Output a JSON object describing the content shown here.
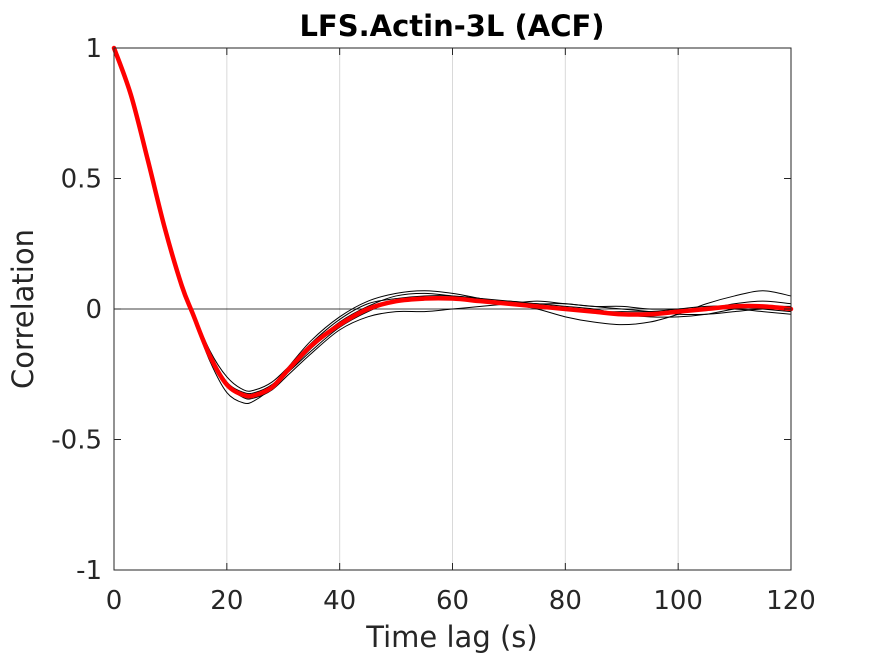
{
  "chart_data": {
    "type": "line",
    "title": "LFS.Actin-3L (ACF)",
    "xlabel": "Time lag (s)",
    "ylabel": "Correlation",
    "xlim": [
      0,
      120
    ],
    "ylim": [
      -1,
      1
    ],
    "xticks": [
      0,
      20,
      40,
      60,
      80,
      100,
      120
    ],
    "yticks": [
      -1,
      -0.5,
      0,
      0.5,
      1
    ],
    "xtick_labels": [
      "0",
      "20",
      "40",
      "60",
      "80",
      "100",
      "120"
    ],
    "ytick_labels": [
      "-1",
      "-0.5",
      "0",
      "0.5",
      "1"
    ],
    "grid": "vertical",
    "zero_line": true,
    "colors": {
      "mean": "#ff0000",
      "traces": "#000000",
      "grid": "#d9d9d9"
    },
    "series": [
      {
        "role": "trace",
        "x": [
          0,
          3,
          6,
          9,
          12,
          14,
          17,
          20,
          23,
          25,
          28,
          31,
          35,
          40,
          45,
          50,
          55,
          60,
          65,
          70,
          75,
          80,
          85,
          90,
          95,
          100,
          105,
          110,
          115,
          120
        ],
        "y": [
          1,
          0.83,
          0.58,
          0.32,
          0.1,
          -0.01,
          -0.17,
          -0.28,
          -0.33,
          -0.33,
          -0.29,
          -0.24,
          -0.16,
          -0.07,
          -0.01,
          0.03,
          0.04,
          0.04,
          0.03,
          0.02,
          0.01,
          0.0,
          -0.01,
          -0.01,
          -0.01,
          0.0,
          0.01,
          0.01,
          0.0,
          -0.01
        ]
      },
      {
        "role": "trace",
        "x": [
          0,
          3,
          6,
          9,
          12,
          14,
          17,
          20,
          23,
          25,
          28,
          31,
          35,
          40,
          45,
          50,
          55,
          60,
          65,
          70,
          75,
          80,
          85,
          90,
          95,
          100,
          105,
          110,
          115,
          120
        ],
        "y": [
          1,
          0.81,
          0.56,
          0.3,
          0.08,
          -0.03,
          -0.2,
          -0.32,
          -0.36,
          -0.35,
          -0.3,
          -0.22,
          -0.12,
          -0.03,
          0.03,
          0.06,
          0.07,
          0.06,
          0.04,
          0.02,
          0.0,
          -0.03,
          -0.05,
          -0.06,
          -0.05,
          -0.02,
          0.02,
          0.05,
          0.07,
          0.05
        ]
      },
      {
        "role": "trace",
        "x": [
          0,
          3,
          6,
          9,
          12,
          14,
          17,
          20,
          23,
          25,
          28,
          31,
          35,
          40,
          45,
          50,
          55,
          60,
          65,
          70,
          75,
          80,
          85,
          90,
          95,
          100,
          105,
          110,
          115,
          120
        ],
        "y": [
          1,
          0.82,
          0.57,
          0.31,
          0.09,
          -0.02,
          -0.18,
          -0.29,
          -0.34,
          -0.34,
          -0.31,
          -0.25,
          -0.17,
          -0.08,
          -0.03,
          -0.01,
          -0.01,
          0.0,
          0.01,
          0.02,
          0.03,
          0.02,
          0.01,
          0.0,
          -0.01,
          -0.02,
          -0.02,
          -0.01,
          0.0,
          0.0
        ]
      },
      {
        "role": "trace",
        "x": [
          0,
          3,
          6,
          9,
          12,
          14,
          17,
          20,
          23,
          25,
          28,
          31,
          35,
          40,
          45,
          50,
          55,
          60,
          65,
          70,
          75,
          80,
          85,
          90,
          95,
          100,
          105,
          110,
          115,
          120
        ],
        "y": [
          1,
          0.83,
          0.59,
          0.33,
          0.1,
          -0.01,
          -0.16,
          -0.26,
          -0.31,
          -0.31,
          -0.28,
          -0.22,
          -0.13,
          -0.04,
          0.02,
          0.04,
          0.05,
          0.05,
          0.04,
          0.03,
          0.02,
          0.02,
          0.01,
          0.01,
          0.0,
          0.0,
          0.0,
          0.0,
          -0.01,
          -0.02
        ]
      },
      {
        "role": "trace",
        "x": [
          0,
          3,
          6,
          9,
          12,
          14,
          17,
          20,
          23,
          25,
          28,
          31,
          35,
          40,
          45,
          50,
          55,
          60,
          65,
          70,
          75,
          80,
          85,
          90,
          95,
          100,
          105,
          110,
          115,
          120
        ],
        "y": [
          1,
          0.82,
          0.58,
          0.32,
          0.09,
          -0.02,
          -0.18,
          -0.29,
          -0.33,
          -0.33,
          -0.3,
          -0.24,
          -0.15,
          -0.06,
          0.0,
          0.03,
          0.04,
          0.04,
          0.03,
          0.03,
          0.02,
          0.01,
          0.0,
          -0.02,
          -0.03,
          -0.03,
          -0.02,
          0.0,
          0.01,
          0.01
        ]
      },
      {
        "role": "trace",
        "x": [
          0,
          3,
          6,
          9,
          12,
          14,
          17,
          20,
          23,
          25,
          28,
          31,
          35,
          40,
          45,
          50,
          55,
          60,
          65,
          70,
          75,
          80,
          85,
          90,
          95,
          100,
          105,
          110,
          115,
          120
        ],
        "y": [
          1,
          0.82,
          0.57,
          0.31,
          0.09,
          -0.02,
          -0.17,
          -0.28,
          -0.32,
          -0.32,
          -0.29,
          -0.23,
          -0.14,
          -0.05,
          0.01,
          0.05,
          0.06,
          0.05,
          0.04,
          0.02,
          0.01,
          0.0,
          -0.01,
          -0.02,
          -0.02,
          -0.01,
          0.0,
          0.02,
          0.03,
          0.02
        ]
      },
      {
        "role": "mean",
        "x": [
          0,
          3,
          6,
          9,
          12,
          14,
          17,
          20,
          23,
          25,
          28,
          31,
          35,
          40,
          45,
          50,
          55,
          60,
          65,
          70,
          75,
          80,
          85,
          90,
          95,
          100,
          105,
          110,
          115,
          120
        ],
        "y": [
          1,
          0.82,
          0.57,
          0.31,
          0.09,
          -0.02,
          -0.18,
          -0.29,
          -0.33,
          -0.33,
          -0.3,
          -0.23,
          -0.14,
          -0.06,
          0.0,
          0.03,
          0.04,
          0.04,
          0.03,
          0.02,
          0.01,
          0.0,
          -0.01,
          -0.02,
          -0.02,
          -0.01,
          0.0,
          0.01,
          0.01,
          0.0
        ]
      }
    ]
  }
}
